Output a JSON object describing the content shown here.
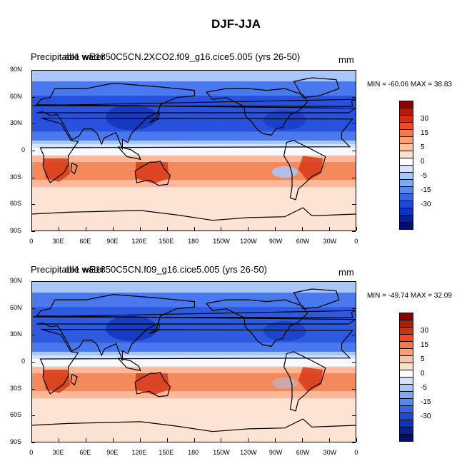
{
  "title": "DJF-JJA",
  "panels": [
    {
      "overlap_text_a": "Precipitable water",
      "overlap_text_b": "ab1 wE1850C5CN.2XCO2.f09_g16.cice5.005 (yrs 26-50)",
      "units": "mm",
      "min_max": "MIN = -60.06 MAX =  38.83"
    },
    {
      "overlap_text_a": "Precipitable water",
      "overlap_text_b": "ab1 wE1850C5CN.f09_g16.cice5.005 (yrs 26-50)",
      "units": "mm",
      "min_max": "MIN = -49.74 MAX =  32.09"
    }
  ],
  "lat_labels": [
    "90N",
    "60N",
    "30N",
    "0",
    "30S",
    "60S",
    "90S"
  ],
  "lon_labels": [
    "0",
    "30E",
    "60E",
    "90E",
    "120E",
    "150E",
    "180",
    "150W",
    "120W",
    "90W",
    "60W",
    "30W",
    "0"
  ],
  "colorbar": {
    "labels": [
      "30",
      "15",
      "5",
      "0",
      "-5",
      "-15",
      "-30"
    ],
    "colors": [
      "#8b0000",
      "#b01b0a",
      "#d42e12",
      "#e84e25",
      "#f47a45",
      "#fa9f75",
      "#fcc2a3",
      "#fde1d0",
      "#ffffff",
      "#d5e4fc",
      "#a9c6f8",
      "#7ea7f4",
      "#5886ef",
      "#3566e6",
      "#1f49d6",
      "#1133bb",
      "#0a1f96",
      "#030f6e"
    ]
  },
  "map_colors": {
    "ocean_base": "#fde3d3",
    "strong_blue": "#1d45d8",
    "mid_blue": "#4a78ee",
    "light_blue": "#a9c6f8",
    "pale_blue": "#d5e4fc",
    "white": "#ffffff",
    "pale_red": "#fbb89a",
    "mid_red": "#f47a45",
    "strong_red": "#d63a19",
    "coast": "#000000"
  }
}
